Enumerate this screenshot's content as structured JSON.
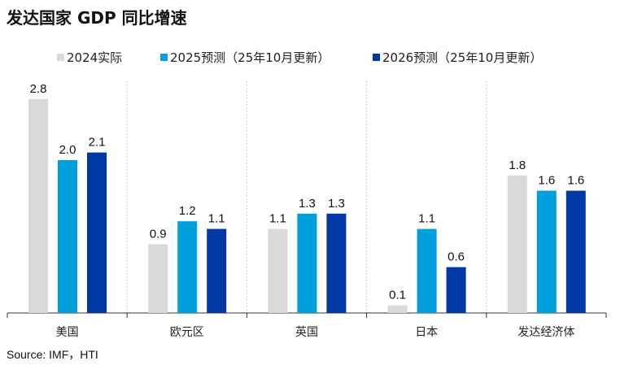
{
  "title": "发达国家 GDP 同比增速",
  "source": "Source: IMF，HTI",
  "chart_data": {
    "type": "bar",
    "categories": [
      "美国",
      "欧元区",
      "英国",
      "日本",
      "发达经济体"
    ],
    "series": [
      {
        "name": "2024实际",
        "color": "#D9D9D9",
        "values": [
          2.8,
          0.9,
          1.1,
          0.1,
          1.8
        ]
      },
      {
        "name": "2025预测（25年10月更新）",
        "color": "#00A0DC",
        "values": [
          2.0,
          1.2,
          1.3,
          1.1,
          1.6
        ]
      },
      {
        "name": "2026预测（25年10月更新）",
        "color": "#0039A6",
        "values": [
          2.1,
          1.1,
          1.3,
          0.6,
          1.6
        ]
      }
    ],
    "ylim": [
      0,
      2.8
    ],
    "legend": "top",
    "data_labels": true,
    "grid": false
  }
}
